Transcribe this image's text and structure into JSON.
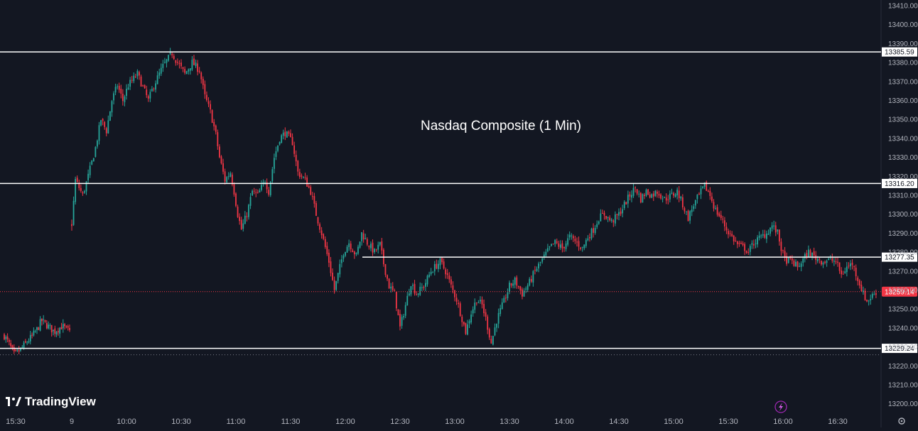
{
  "chart_data": {
    "type": "candlestick",
    "title": "Nasdaq Composite (1 Min)",
    "instrument": "Nasdaq Composite",
    "interval": "1 Min",
    "ylim": [
      13195,
      13413
    ],
    "y_ticks": [
      13200,
      13210,
      13220,
      13230,
      13240,
      13250,
      13260,
      13270,
      13280,
      13290,
      13300,
      13310,
      13320,
      13330,
      13340,
      13350,
      13360,
      13370,
      13380,
      13390,
      13400,
      13410
    ],
    "y_tick_labels": [
      "13200.00",
      "13210.00",
      "13220.00",
      "13230.00",
      "13240.00",
      "13250.00",
      "13260.00",
      "13270.00",
      "13280.00",
      "13290.00",
      "13300.00",
      "13310.00",
      "13320.00",
      "13330.00",
      "13340.00",
      "13350.00",
      "13360.00",
      "13370.00",
      "13380.00",
      "13390.00",
      "13400.00",
      "13410.00"
    ],
    "x_axis_labels": [
      "15:30",
      "9",
      "10:00",
      "10:30",
      "11:00",
      "11:30",
      "12:00",
      "12:30",
      "13:00",
      "13:30",
      "14:00",
      "14:30",
      "15:00",
      "15:30",
      "16:00",
      "16:30"
    ],
    "levels": [
      {
        "value": 13385.59,
        "label": "13385.59",
        "style": "solid",
        "extent": "full"
      },
      {
        "value": 13316.2,
        "label": "13316.20",
        "style": "solid",
        "extent": "full"
      },
      {
        "value": 13277.35,
        "label": "13277.35",
        "style": "solid",
        "extent": "partial",
        "from_time": "12:10"
      },
      {
        "value": 13229.24,
        "label": "13229.24",
        "style": "solid",
        "extent": "full"
      }
    ],
    "last_price": {
      "value": 13259.14,
      "label": "13259.14",
      "color": "#f23645"
    },
    "colors": {
      "up": "#26a69a",
      "down": "#f23645",
      "background": "#131722",
      "level": "#ffffff"
    },
    "sessions": [
      {
        "name": "previous day close",
        "close_path": [
          [
            13236,
            0
          ],
          [
            13232,
            4
          ],
          [
            13226,
            9
          ],
          [
            13228,
            14
          ],
          [
            13232,
            20
          ],
          [
            13236,
            26
          ],
          [
            13240,
            31
          ],
          [
            13244,
            34
          ],
          [
            13241,
            40
          ],
          [
            13238,
            46
          ],
          [
            13241,
            53
          ],
          [
            13238,
            60
          ]
        ]
      },
      {
        "name": "regular session",
        "close_path": [
          [
            13295,
            0
          ],
          [
            13318,
            2
          ],
          [
            13310,
            6
          ],
          [
            13320,
            9
          ],
          [
            13335,
            13
          ],
          [
            13350,
            16
          ],
          [
            13344,
            19
          ],
          [
            13360,
            22
          ],
          [
            13368,
            25
          ],
          [
            13360,
            28
          ],
          [
            13368,
            31
          ],
          [
            13374,
            36
          ],
          [
            13360,
            42
          ],
          [
            13368,
            45
          ],
          [
            13378,
            50
          ],
          [
            13385,
            55
          ],
          [
            13380,
            58
          ],
          [
            13374,
            62
          ],
          [
            13380,
            66
          ],
          [
            13376,
            70
          ],
          [
            13362,
            73
          ],
          [
            13354,
            76
          ],
          [
            13342,
            79
          ],
          [
            13330,
            81
          ],
          [
            13318,
            84
          ],
          [
            13322,
            87
          ],
          [
            13312,
            89
          ],
          [
            13300,
            91
          ],
          [
            13292,
            93
          ],
          [
            13300,
            96
          ],
          [
            13312,
            99
          ],
          [
            13310,
            102
          ],
          [
            13318,
            106
          ],
          [
            13312,
            108
          ],
          [
            13330,
            111
          ],
          [
            13340,
            114
          ],
          [
            13343,
            117
          ],
          [
            13338,
            121
          ],
          [
            13322,
            124
          ],
          [
            13318,
            128
          ],
          [
            13312,
            131
          ],
          [
            13300,
            134
          ],
          [
            13290,
            137
          ],
          [
            13275,
            141
          ],
          [
            13260,
            144
          ],
          [
            13268,
            146
          ],
          [
            13280,
            149
          ],
          [
            13285,
            152
          ],
          [
            13278,
            156
          ],
          [
            13290,
            159
          ],
          [
            13285,
            162
          ],
          [
            13280,
            166
          ],
          [
            13284,
            169
          ],
          [
            13274,
            171
          ],
          [
            13262,
            174
          ],
          [
            13258,
            177
          ],
          [
            13240,
            180
          ],
          [
            13252,
            183
          ],
          [
            13264,
            186
          ],
          [
            13258,
            189
          ],
          [
            13262,
            193
          ],
          [
            13270,
            197
          ],
          [
            13275,
            202
          ],
          [
            13270,
            205
          ],
          [
            13262,
            208
          ],
          [
            13255,
            211
          ],
          [
            13245,
            214
          ],
          [
            13238,
            216
          ],
          [
            13248,
            219
          ],
          [
            13255,
            222
          ],
          [
            13252,
            225
          ],
          [
            13245,
            227
          ],
          [
            13232,
            230
          ],
          [
            13244,
            233
          ],
          [
            13254,
            237
          ],
          [
            13262,
            240
          ],
          [
            13265,
            243
          ],
          [
            13258,
            247
          ],
          [
            13264,
            251
          ],
          [
            13270,
            254
          ],
          [
            13276,
            258
          ],
          [
            13282,
            262
          ],
          [
            13285,
            265
          ],
          [
            13282,
            269
          ],
          [
            13288,
            273
          ],
          [
            13285,
            277
          ],
          [
            13282,
            280
          ],
          [
            13288,
            283
          ],
          [
            13292,
            286
          ],
          [
            13298,
            289
          ],
          [
            13300,
            292
          ],
          [
            13296,
            296
          ],
          [
            13300,
            300
          ],
          [
            13305,
            303
          ],
          [
            13310,
            306
          ],
          [
            13314,
            309
          ],
          [
            13308,
            312
          ],
          [
            13312,
            315
          ],
          [
            13310,
            318
          ],
          [
            13312,
            321
          ],
          [
            13308,
            325
          ],
          [
            13310,
            329
          ],
          [
            13312,
            332
          ],
          [
            13305,
            335
          ],
          [
            13298,
            338
          ],
          [
            13305,
            341
          ],
          [
            13310,
            344
          ],
          [
            13315,
            347
          ],
          [
            13310,
            350
          ],
          [
            13302,
            353
          ],
          [
            13298,
            356
          ],
          [
            13292,
            359
          ],
          [
            13288,
            362
          ],
          [
            13284,
            365
          ],
          [
            13282,
            369
          ],
          [
            13280,
            371
          ],
          [
            13285,
            374
          ],
          [
            13288,
            378
          ],
          [
            13290,
            381
          ],
          [
            13294,
            384
          ],
          [
            13290,
            387
          ],
          [
            13282,
            389
          ],
          [
            13276,
            391
          ],
          [
            13275,
            395
          ],
          [
            13272,
            398
          ],
          [
            13276,
            401
          ],
          [
            13280,
            404
          ],
          [
            13277,
            408
          ],
          [
            13275,
            412
          ],
          [
            13276,
            416
          ],
          [
            13275,
            419
          ],
          [
            13268,
            422
          ],
          [
            13272,
            425
          ],
          [
            13274,
            428
          ],
          [
            13266,
            431
          ],
          [
            13258,
            434
          ],
          [
            13254,
            436
          ],
          [
            13257,
            439
          ],
          [
            13259,
            441
          ]
        ]
      }
    ],
    "x_label_minutes": [
      -30,
      0,
      30,
      60,
      90,
      120,
      150,
      180,
      210,
      240,
      270,
      300,
      330,
      360,
      390,
      420
    ]
  },
  "branding": {
    "logo_text": "TradingView",
    "logo_icon": "tradingview-logo-icon"
  },
  "controls": {
    "lightning_icon": "lightning-icon",
    "settings_icon": "gear-icon"
  }
}
